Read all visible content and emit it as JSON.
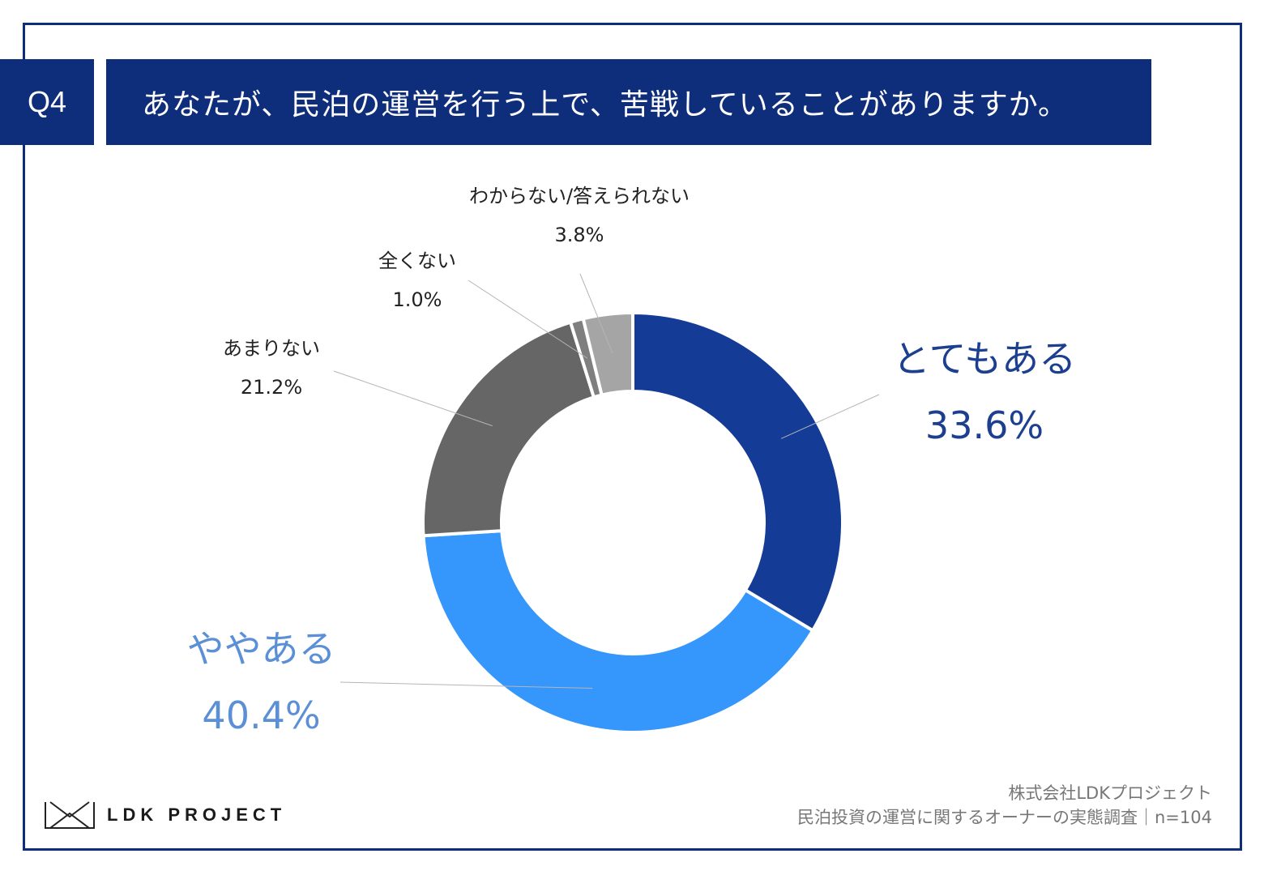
{
  "header": {
    "question_no": "Q4",
    "question": "あなたが、民泊の運営を行う上で、苦戦していることがありますか。"
  },
  "chart_data": {
    "type": "pie",
    "donut": true,
    "categories": [
      "とてもある",
      "ややある",
      "あまりない",
      "全くない",
      "わからない/答えられない"
    ],
    "values": [
      33.6,
      40.4,
      21.2,
      1.0,
      3.8
    ],
    "value_labels": [
      "33.6%",
      "40.4%",
      "21.2%",
      "1.0%",
      "3.8%"
    ],
    "colors": [
      "#143b95",
      "#3596fc",
      "#666666",
      "#7f7f7f",
      "#a5a5a5"
    ],
    "start_angle": "12 o'clock",
    "direction": "clockwise"
  },
  "footer": {
    "logo_text": "LDK PROJECT",
    "source_line1": "株式会社LDKプロジェクト",
    "source_line2": "民泊投資の運営に関するオーナーの実態調査｜n=104"
  }
}
